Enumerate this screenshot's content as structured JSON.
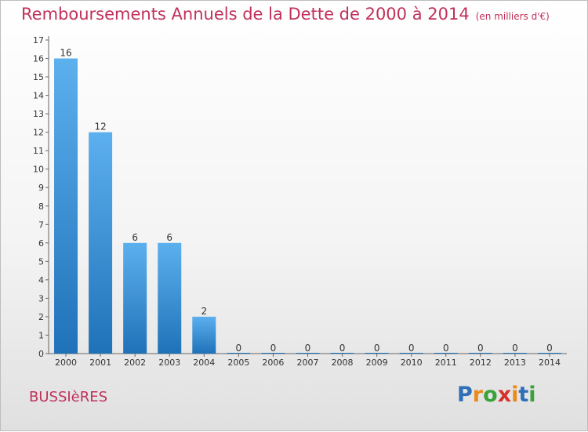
{
  "chart_data": {
    "type": "bar",
    "title": "Remboursements Annuels de la Dette de 2000 à 2014",
    "subtitle": "(en milliers d'€)",
    "categories": [
      "2000",
      "2001",
      "2002",
      "2003",
      "2004",
      "2005",
      "2006",
      "2007",
      "2008",
      "2009",
      "2010",
      "2011",
      "2012",
      "2013",
      "2014"
    ],
    "values": [
      16,
      12,
      6,
      6,
      2,
      0,
      0,
      0,
      0,
      0,
      0,
      0,
      0,
      0,
      0
    ],
    "data_labels": [
      "16",
      "12",
      "6",
      "6",
      "2",
      "0",
      "0",
      "0",
      "0",
      "0",
      "0",
      "0",
      "0",
      "0",
      "0"
    ],
    "ylim": [
      0,
      17
    ],
    "yticks": [
      "0",
      "1",
      "2",
      "3",
      "4",
      "5",
      "6",
      "7",
      "8",
      "9",
      "10",
      "11",
      "12",
      "13",
      "14",
      "15",
      "16",
      "17"
    ],
    "xlabel": "",
    "ylabel": "",
    "legend": false,
    "bar_color": "#3a8fd6"
  },
  "footer": {
    "commune": "BUSSIèRES",
    "logo_letters": [
      "P",
      "r",
      "o",
      "x",
      "i",
      "t",
      "i"
    ],
    "logo_colors": [
      "#2e6fb8",
      "#e98a1c",
      "#3aa23a",
      "#d6302a",
      "#e98a1c",
      "#2e6fb8",
      "#3aa23a"
    ]
  }
}
